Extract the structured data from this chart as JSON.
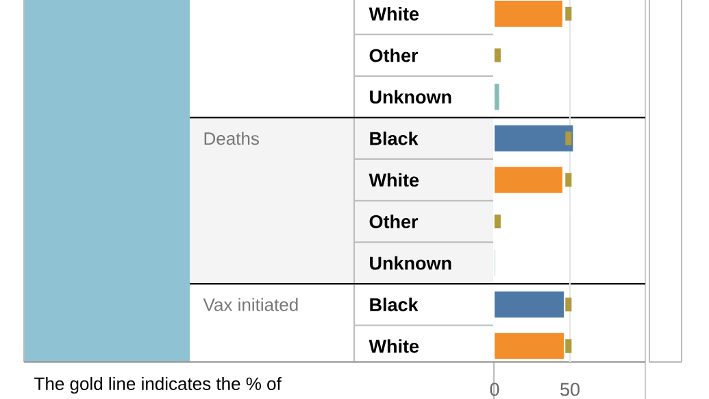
{
  "chart_data": {
    "type": "bar",
    "orientation": "horizontal",
    "categories": [
      "White",
      "Other",
      "Unknown",
      "Black",
      "White",
      "Other",
      "Unknown",
      "Black",
      "White"
    ],
    "series": [
      {
        "colors": [
          "#f28e2b",
          "#e15759",
          "#86bcb6",
          "#4e79a7",
          "#f28e2b",
          "#e15759",
          "#86bcb6",
          "#4e79a7",
          "#f28e2b"
        ],
        "values": [
          45,
          null,
          3,
          52,
          45,
          null,
          0.3,
          46,
          46
        ]
      },
      {
        "type": "scatter",
        "marker": "square",
        "color": "#b09a3e",
        "values": [
          49,
          2,
          null,
          49,
          49,
          2,
          null,
          49,
          49
        ]
      }
    ],
    "xlim": [
      0,
      100
    ],
    "xticks": [
      0,
      50
    ],
    "ref_lines": [
      {
        "axis": "x",
        "value": 50,
        "color": "#e4e4e4"
      }
    ],
    "annotations": [
      "Deaths",
      "Vax initiated",
      "The gold line indicates the % of"
    ]
  }
}
